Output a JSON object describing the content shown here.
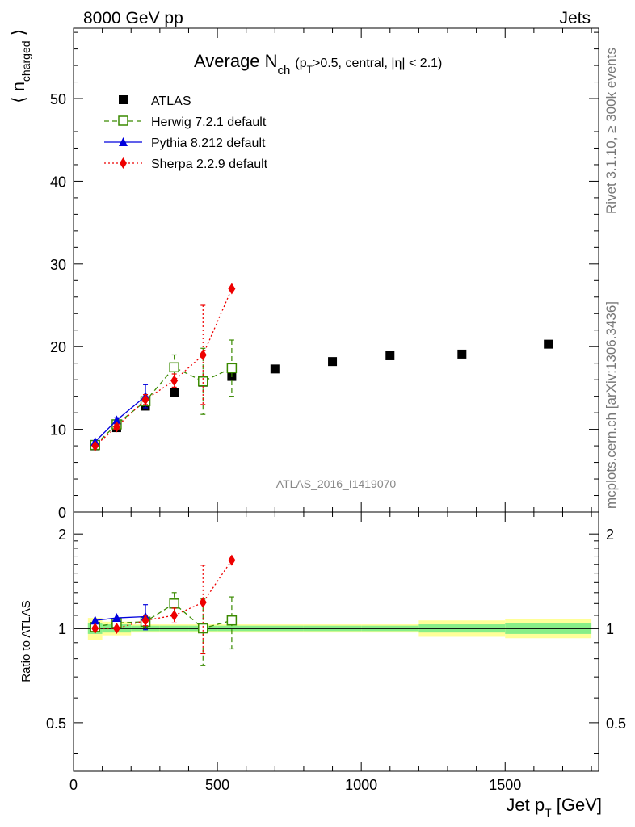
{
  "header": {
    "left": "8000 GeV pp",
    "right": "Jets"
  },
  "side_labels": {
    "rivet": "Rivet 3.1.10, ≥ 300k events",
    "mcplots": "mcplots.cern.ch [arXiv:1306.3436]"
  },
  "chart_data": {
    "type": "scatter",
    "title": {
      "main": "Average N",
      "sub": "ch",
      "paren_open": "(p",
      "paren_sub": "T",
      "paren_rest": ">0.5, central, |η| < 2.1)"
    },
    "watermark": "ATLAS_2016_I1419070",
    "xlabel": {
      "main": "Jet p",
      "sub": "T",
      "rest": " [GeV]"
    },
    "ylabel_top": {
      "main": "⟨ n",
      "sub": "charged",
      "rest": " ⟩"
    },
    "ylabel_bottom": "Ratio to ATLAS",
    "xlim": [
      0,
      1825
    ],
    "ylim_top": [
      0,
      58.5
    ],
    "ylim_bottom": [
      0.35,
      2.35
    ],
    "x_ticks": [
      0,
      500,
      1000,
      1500
    ],
    "x_tick_labels": [
      "0",
      "500",
      "1000",
      "1500"
    ],
    "y_ticks_top": [
      0,
      10,
      20,
      30,
      40,
      50
    ],
    "y_tick_labels_top": [
      "0",
      "10",
      "20",
      "30",
      "40",
      "50"
    ],
    "y_ticks_bottom": [
      0.5,
      1,
      2
    ],
    "y_tick_labels_bottom": [
      "0.5",
      "1",
      "2"
    ],
    "data": {
      "name": "ATLAS",
      "color": "#000000",
      "x": [
        75,
        150,
        250,
        350,
        450,
        550,
        700,
        900,
        1100,
        1350,
        1650
      ],
      "y": [
        8.0,
        10.2,
        12.8,
        14.5,
        15.7,
        16.4,
        17.3,
        18.2,
        18.9,
        19.1,
        20.3
      ],
      "bins": [
        [
          50,
          100
        ],
        [
          100,
          200
        ],
        [
          200,
          300
        ],
        [
          300,
          400
        ],
        [
          400,
          500
        ],
        [
          500,
          600
        ],
        [
          600,
          800
        ],
        [
          800,
          1000
        ],
        [
          1000,
          1200
        ],
        [
          1200,
          1500
        ],
        [
          1500,
          1800
        ]
      ],
      "band_yellow": [
        0.08,
        0.05,
        0.03,
        0.03,
        0.03,
        0.03,
        0.03,
        0.03,
        0.03,
        0.06,
        0.07
      ],
      "band_green": [
        0.04,
        0.03,
        0.02,
        0.02,
        0.02,
        0.02,
        0.02,
        0.02,
        0.02,
        0.03,
        0.04
      ]
    },
    "series": [
      {
        "name": "Herwig 7.2.1 default",
        "color": "#3a8a00",
        "marker": "open-square",
        "dash": "6,4",
        "x": [
          75,
          150,
          250,
          350,
          450,
          550
        ],
        "y": [
          8.1,
          10.6,
          13.4,
          17.5,
          15.8,
          17.4
        ],
        "err": [
          0.2,
          0.3,
          0.5,
          1.5,
          4.0,
          3.4
        ],
        "ratio": [
          1.01,
          1.04,
          1.05,
          1.2,
          1.0,
          1.06
        ],
        "ratio_err": [
          0.02,
          0.03,
          0.04,
          0.1,
          0.24,
          0.2
        ]
      },
      {
        "name": "Pythia 8.212 default",
        "color": "#0000dd",
        "marker": "triangle",
        "dash": "",
        "x": [
          75,
          150,
          250
        ],
        "y": [
          8.5,
          11.1,
          14.0
        ],
        "err": [
          0.2,
          0.3,
          1.4
        ],
        "ratio": [
          1.06,
          1.08,
          1.09
        ],
        "ratio_err": [
          0.02,
          0.03,
          0.1
        ]
      },
      {
        "name": "Sherpa 2.2.9 default",
        "color": "#ee0000",
        "marker": "diamond",
        "dash": "2,3",
        "x": [
          75,
          150,
          250,
          350,
          450,
          550
        ],
        "y": [
          8.0,
          10.3,
          13.6,
          15.9,
          19.0,
          27.0
        ],
        "err": [
          0.2,
          0.3,
          0.6,
          0.8,
          6.0,
          0.2
        ],
        "ratio": [
          1.0,
          1.0,
          1.06,
          1.1,
          1.21,
          1.65
        ],
        "ratio_err": [
          0.02,
          0.02,
          0.04,
          0.06,
          0.38,
          0.02
        ]
      }
    ]
  }
}
